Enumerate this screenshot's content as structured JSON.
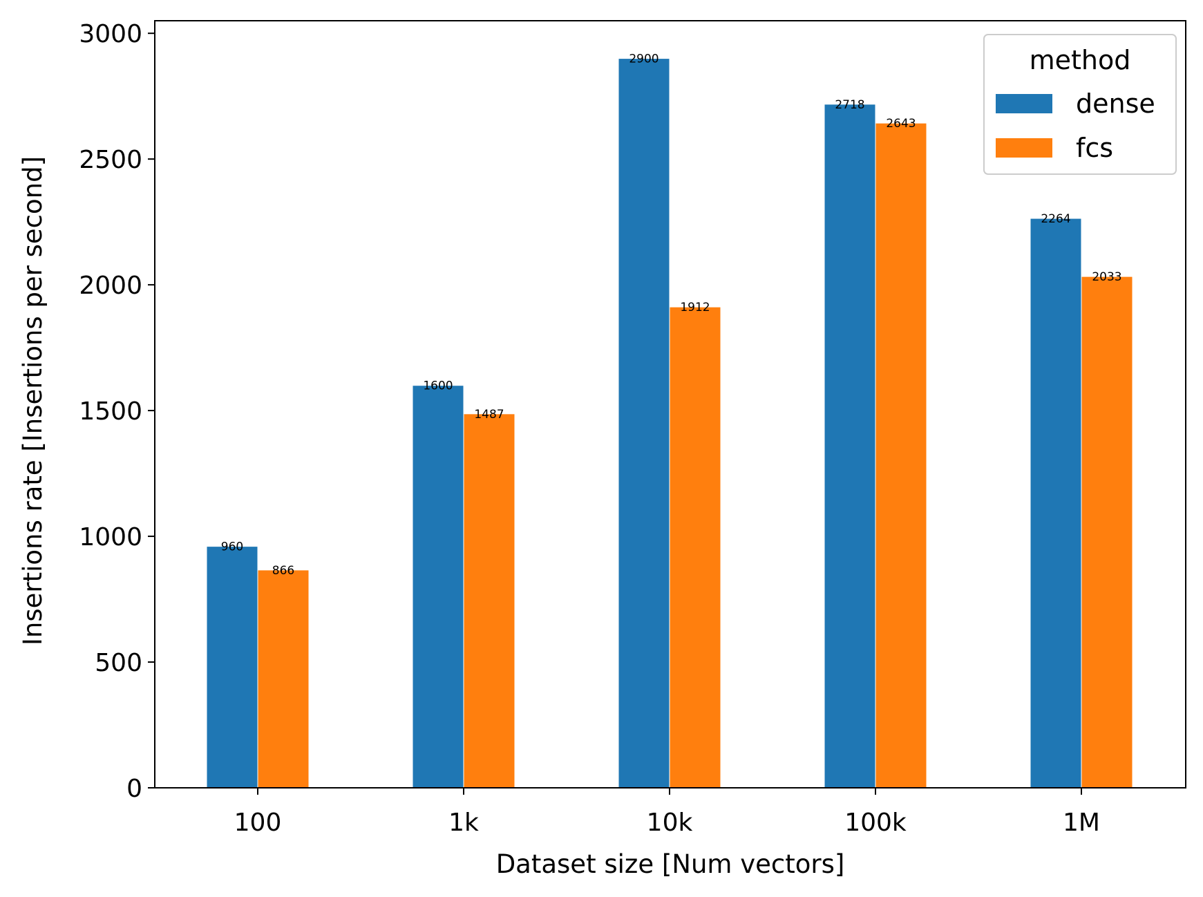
{
  "chart_data": {
    "type": "bar",
    "title": "",
    "xlabel": "Dataset size [Num vectors]",
    "ylabel": "Insertions rate [Insertions per second]",
    "categories": [
      "100",
      "1k",
      "10k",
      "100k",
      "1M"
    ],
    "series": [
      {
        "name": "dense",
        "values": [
          960,
          1600,
          2900,
          2718,
          2264
        ],
        "color": "#1f77b4"
      },
      {
        "name": "fcs",
        "values": [
          866,
          1487,
          1912,
          2643,
          2033
        ],
        "color": "#ff7f0e"
      }
    ],
    "data_labels": {
      "dense": [
        "960",
        "1600",
        "2900",
        "2718",
        "2264"
      ],
      "fcs": [
        "866",
        "1487",
        "1912",
        "2643",
        "2033"
      ]
    },
    "ylim": [
      0,
      3050
    ],
    "yticks": [
      0,
      500,
      1000,
      1500,
      2000,
      2500,
      3000
    ],
    "grid": false,
    "legend": {
      "title": "method",
      "placement": "top-right"
    }
  }
}
